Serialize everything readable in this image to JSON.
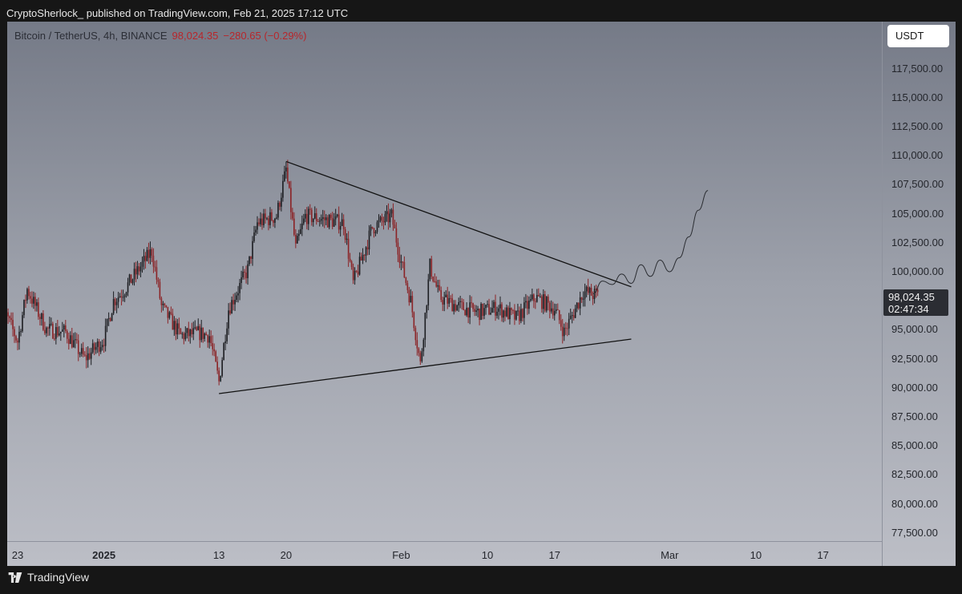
{
  "header": {
    "text": "CryptoSherlock_ published on TradingView.com, Feb 21, 2025 17:12 UTC"
  },
  "symbol": {
    "name": "Bitcoin / TetherUS, 4h, BINANCE",
    "price": "98,024.35",
    "change": "−280.65 (−0.29%)"
  },
  "currency_button": "USDT",
  "last_price_label": {
    "value": "98,024.35",
    "countdown": "02:47:34"
  },
  "footer": {
    "brand": "TradingView",
    "logo_icon": "tradingview-logo-icon"
  },
  "colors": {
    "up": "#1c1d21",
    "down": "#8b2326",
    "line": "#111111",
    "accent": "#b8262b"
  },
  "chart_data": {
    "type": "candlestick",
    "title": "Bitcoin / TetherUS, 4h, BINANCE",
    "y_ticks": [
      "117,500.00",
      "115,000.00",
      "112,500.00",
      "110,000.00",
      "107,500.00",
      "105,000.00",
      "102,500.00",
      "100,000.00",
      "95,000.00",
      "92,500.00",
      "90,000.00",
      "87,500.00",
      "85,000.00",
      "82,500.00",
      "80,000.00",
      "77,500.00"
    ],
    "x_ticks": [
      {
        "label": "23",
        "date": "2024-12-23"
      },
      {
        "label": "2025",
        "date": "2025-01-01",
        "bold": true
      },
      {
        "label": "13",
        "date": "2025-01-13"
      },
      {
        "label": "20",
        "date": "2025-01-20"
      },
      {
        "label": "Feb",
        "date": "2025-02-01"
      },
      {
        "label": "10",
        "date": "2025-02-10"
      },
      {
        "label": "17",
        "date": "2025-02-17"
      },
      {
        "label": "Mar",
        "date": "2025-03-01"
      },
      {
        "label": "10",
        "date": "2025-03-10"
      },
      {
        "label": "17",
        "date": "2025-03-17"
      }
    ],
    "ylim": [
      76500,
      119500
    ],
    "last_price": 98024.35,
    "price_path": [
      [
        "2024-12-21",
        97800
      ],
      [
        "2024-12-23",
        94000
      ],
      [
        "2024-12-24",
        98500
      ],
      [
        "2024-12-26",
        95000
      ],
      [
        "2024-12-28",
        94800
      ],
      [
        "2024-12-30",
        92500
      ],
      [
        "2025-01-01",
        94200
      ],
      [
        "2025-01-02",
        97500
      ],
      [
        "2025-01-03",
        98300
      ],
      [
        "2025-01-06",
        101800
      ],
      [
        "2025-01-07",
        97000
      ],
      [
        "2025-01-09",
        94500
      ],
      [
        "2025-01-11",
        94700
      ],
      [
        "2025-01-12",
        94500
      ],
      [
        "2025-01-13",
        90500
      ],
      [
        "2025-01-14",
        96800
      ],
      [
        "2025-01-16",
        100200
      ],
      [
        "2025-01-17",
        104200
      ],
      [
        "2025-01-19",
        104800
      ],
      [
        "2025-01-20",
        108800
      ],
      [
        "2025-01-21",
        102000
      ],
      [
        "2025-01-22",
        104800
      ],
      [
        "2025-01-24",
        104500
      ],
      [
        "2025-01-26",
        104200
      ],
      [
        "2025-01-27",
        99000
      ],
      [
        "2025-01-29",
        103800
      ],
      [
        "2025-01-31",
        104800
      ],
      [
        "2025-02-01",
        100800
      ],
      [
        "2025-02-02",
        97500
      ],
      [
        "2025-02-03",
        92000
      ],
      [
        "2025-02-04",
        100500
      ],
      [
        "2025-02-05",
        97800
      ],
      [
        "2025-02-07",
        97000
      ],
      [
        "2025-02-09",
        96500
      ],
      [
        "2025-02-11",
        96900
      ],
      [
        "2025-02-13",
        96000
      ],
      [
        "2025-02-15",
        97800
      ],
      [
        "2025-02-17",
        96800
      ],
      [
        "2025-02-18",
        94800
      ],
      [
        "2025-02-19",
        96500
      ],
      [
        "2025-02-20",
        98300
      ],
      [
        "2025-02-21",
        98024.35
      ]
    ],
    "trendlines": [
      {
        "name": "upper",
        "from": [
          "2025-01-20",
          109500
        ],
        "to": [
          "2025-02-25",
          98700
        ]
      },
      {
        "name": "lower",
        "from": [
          "2025-01-13",
          89500
        ],
        "to": [
          "2025-02-25",
          94200
        ]
      }
    ],
    "projection": [
      [
        "2025-02-21",
        98100
      ],
      [
        "2025-02-22",
        99200
      ],
      [
        "2025-02-23",
        98900
      ],
      [
        "2025-02-24",
        99800
      ],
      [
        "2025-02-25",
        99000
      ],
      [
        "2025-02-26",
        100600
      ],
      [
        "2025-02-27",
        99600
      ],
      [
        "2025-02-28",
        101000
      ],
      [
        "2025-03-01",
        100000
      ],
      [
        "2025-03-02",
        101200
      ],
      [
        "2025-03-03",
        103000
      ],
      [
        "2025-03-04",
        105300
      ],
      [
        "2025-03-05",
        107000
      ]
    ],
    "grid": false
  }
}
